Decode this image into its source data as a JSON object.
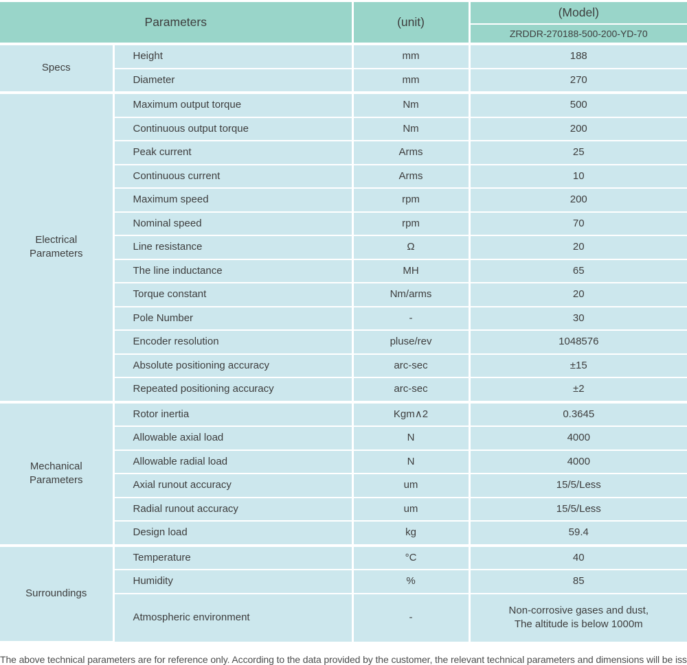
{
  "header": {
    "parameters_label": "Parameters",
    "unit_label": "(unit)",
    "model_label": "(Model)",
    "model_value": "ZRDDR-270188-500-200-YD-70"
  },
  "sections": [
    {
      "category": "Specs",
      "rows": [
        {
          "param": "Height",
          "unit": "mm",
          "value": "188"
        },
        {
          "param": "Diameter",
          "unit": "mm",
          "value": "270"
        }
      ]
    },
    {
      "category": "Electrical\nParameters",
      "rows": [
        {
          "param": "Maximum output torque",
          "unit": "Nm",
          "value": "500"
        },
        {
          "param": "Continuous output torque",
          "unit": "Nm",
          "value": "200"
        },
        {
          "param": "Peak current",
          "unit": "Arms",
          "value": "25"
        },
        {
          "param": "Continuous current",
          "unit": "Arms",
          "value": "10"
        },
        {
          "param": "Maximum speed",
          "unit": "rpm",
          "value": "200"
        },
        {
          "param": "Nominal speed",
          "unit": "rpm",
          "value": "70"
        },
        {
          "param": "Line resistance",
          "unit": "Ω",
          "value": "20"
        },
        {
          "param": "The line inductance",
          "unit": "MH",
          "value": "65"
        },
        {
          "param": "Torque constant",
          "unit": "Nm/arms",
          "value": "20"
        },
        {
          "param": "Pole Number",
          "unit": "-",
          "value": "30"
        },
        {
          "param": "Encoder resolution",
          "unit": "pluse/rev",
          "value": "1048576"
        },
        {
          "param": "Absolute positioning accuracy",
          "unit": "arc-sec",
          "value": "±15"
        },
        {
          "param": "Repeated positioning accuracy",
          "unit": "arc-sec",
          "value": "±2"
        }
      ]
    },
    {
      "category": "Mechanical\nParameters",
      "rows": [
        {
          "param": "Rotor inertia",
          "unit": "Kgm∧2",
          "value": "0.3645"
        },
        {
          "param": "Allowable axial load",
          "unit": "N",
          "value": "4000"
        },
        {
          "param": "Allowable radial load",
          "unit": "N",
          "value": "4000"
        },
        {
          "param": "Axial runout accuracy",
          "unit": "um",
          "value": "15/5/Less"
        },
        {
          "param": "Radial runout accuracy",
          "unit": "um",
          "value": "15/5/Less"
        },
        {
          "param": "Design load",
          "unit": "kg",
          "value": "59.4"
        }
      ]
    },
    {
      "category": "Surroundings",
      "rows": [
        {
          "param": "Temperature",
          "unit": "°C",
          "value": "40"
        },
        {
          "param": "Humidity",
          "unit": "%",
          "value": "85"
        },
        {
          "param": "Atmospheric environment",
          "unit": "-",
          "value": "Non-corrosive gases and dust,\nThe altitude is below 1000m"
        }
      ]
    }
  ],
  "footer_note": "The above technical parameters are for reference only. According to the data provided by the customer, the relevant technical parameters and dimensions will be issued.",
  "colors": {
    "header_bg": "#99d5c9",
    "cell_bg": "#cce7ed",
    "border": "#ffffff",
    "text": "#3d3d3d"
  }
}
